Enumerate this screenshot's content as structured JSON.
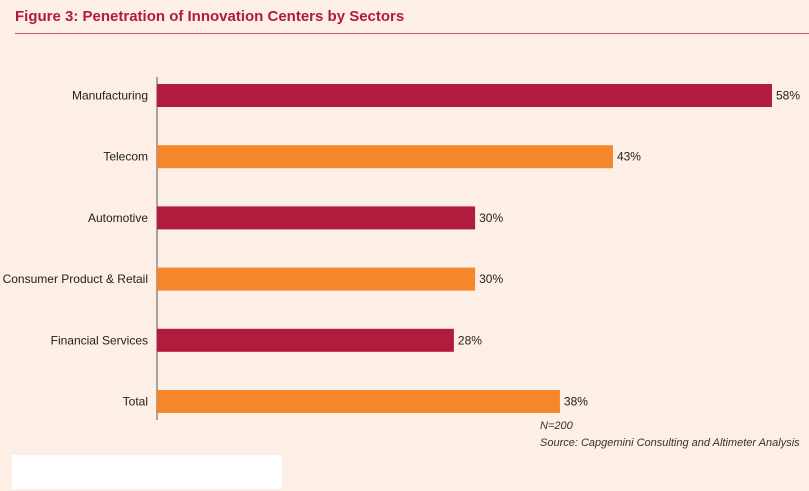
{
  "figure": {
    "title": "Figure 3: Penetration of Innovation Centers by Sectors",
    "note_n": "N=200",
    "source": "Source: Capgemini Consulting and Altimeter Analysis"
  },
  "colors": {
    "crimson": "#b01b3e",
    "orange": "#f5862b",
    "background": "#fdeee6"
  },
  "chart_data": {
    "type": "bar",
    "orientation": "horizontal",
    "categories": [
      "Manufacturing",
      "Telecom",
      "Automotive",
      "Consumer Product & Retail",
      "Financial Services",
      "Total"
    ],
    "values": [
      58,
      43,
      30,
      30,
      28,
      38
    ],
    "value_labels": [
      "58%",
      "43%",
      "30%",
      "30%",
      "28%",
      "38%"
    ],
    "bar_colors": [
      "#b01b3e",
      "#f5862b",
      "#b01b3e",
      "#f5862b",
      "#b01b3e",
      "#f5862b"
    ],
    "title": "",
    "xlabel": "",
    "ylabel": "",
    "xlim": [
      0,
      58
    ],
    "grid": false,
    "legend": "none"
  }
}
